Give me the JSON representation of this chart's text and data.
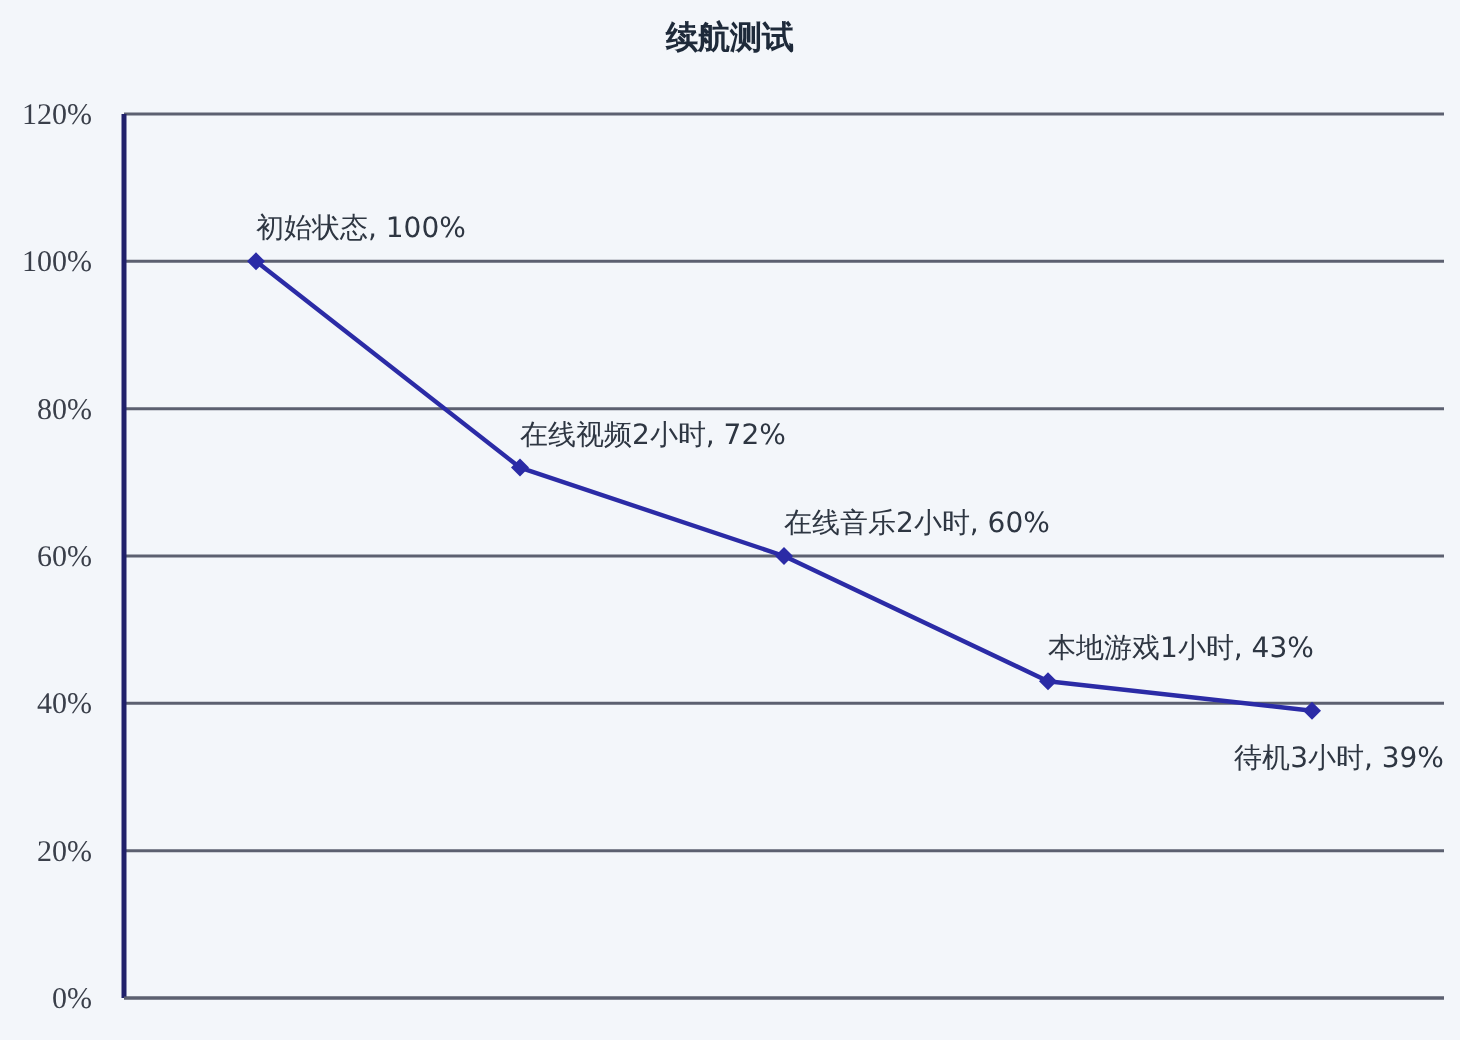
{
  "chart_data": {
    "type": "line",
    "title": "续航测试",
    "categories": [
      null,
      null,
      null,
      null,
      null
    ],
    "series": [
      {
        "color": "#2b2ba6",
        "values": [
          100,
          72,
          60,
          43,
          39
        ],
        "value_labels": [
          "初始状态, 100%",
          "在线视频2小时, 72%",
          "在线音乐2小时, 60%",
          "本地游戏1小时, 43%",
          "待机3小时, 39%"
        ]
      }
    ],
    "ylim": [
      0,
      120
    ],
    "yticks": [
      {
        "value": 0,
        "label": "0%"
      },
      {
        "value": 20,
        "label": "20%"
      },
      {
        "value": 40,
        "label": "40%"
      },
      {
        "value": 60,
        "label": "60%"
      },
      {
        "value": 80,
        "label": "80%"
      },
      {
        "value": 100,
        "label": "100%"
      },
      {
        "value": 120,
        "label": "120%"
      }
    ],
    "grid": "y",
    "marker": "diamond",
    "line_style": "solid"
  }
}
